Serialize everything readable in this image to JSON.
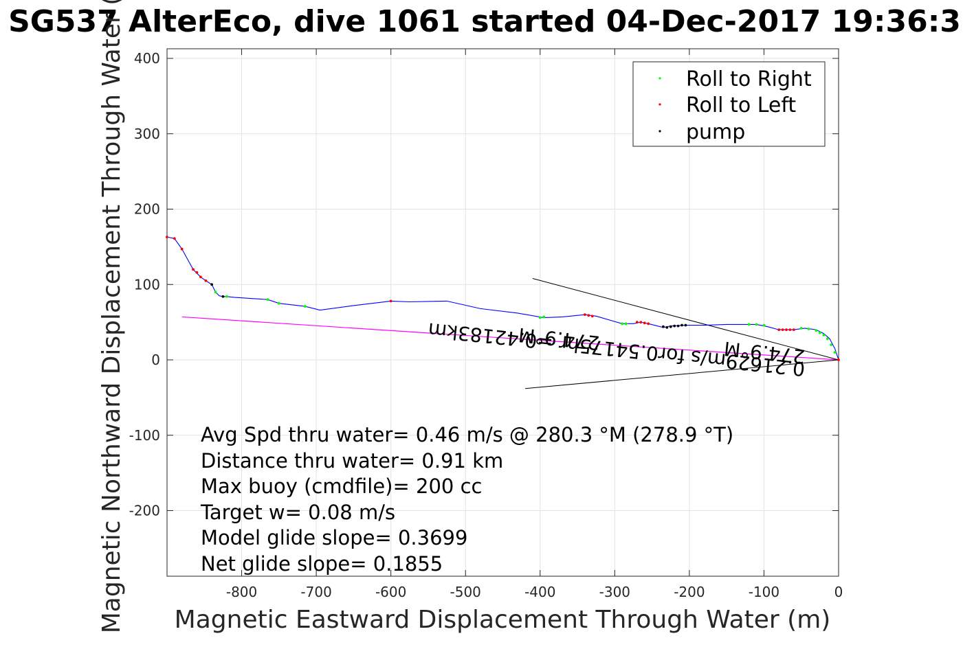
{
  "chart_data": {
    "type": "line",
    "title": "SG537 AlterEco, dive 1061 started 04-Dec-2017 19:36:3",
    "xlabel": "Magnetic Eastward Displacement Through Water (m)",
    "ylabel": "Magnetic Northward Displacement Through Water (",
    "xlim": [
      -900,
      0
    ],
    "ylim": [
      -290,
      415
    ],
    "xticks": [
      -800,
      -700,
      -600,
      -500,
      -400,
      -300,
      -200,
      -100,
      0
    ],
    "yticks": [
      -200,
      -100,
      0,
      100,
      200,
      300,
      400
    ],
    "grid": true,
    "legend_position": "top-right",
    "legend": [
      {
        "label": "Roll to Right",
        "color": "#00ff00"
      },
      {
        "label": "Roll to Left",
        "color": "#ff0000"
      },
      {
        "label": "pump",
        "color": "#000000"
      }
    ],
    "track": {
      "color": "#0000ff",
      "x": [
        -900,
        -890,
        -880,
        -865,
        -855,
        -848,
        -840,
        -835,
        -830,
        -825,
        -820,
        -810,
        -765,
        -750,
        -715,
        -695,
        -650,
        -600,
        -575,
        -525,
        -480,
        -430,
        -395,
        -370,
        -340,
        -325,
        -290,
        -275,
        -265,
        -255,
        -235,
        -225,
        -205,
        -180,
        -150,
        -110,
        -95,
        -80,
        -60,
        -45,
        -30,
        -20,
        -12,
        -5,
        0
      ],
      "y": [
        163,
        161,
        147,
        120,
        110,
        105,
        100,
        90,
        85,
        84,
        84,
        83,
        80,
        75,
        71,
        66,
        72,
        78,
        77,
        78,
        68,
        62,
        56,
        57,
        60,
        58,
        48,
        48,
        50,
        48,
        43,
        45,
        46,
        46,
        47,
        47,
        44,
        40,
        40,
        42,
        40,
        35,
        28,
        15,
        0
      ]
    },
    "roll_right": {
      "x": [
        -835,
        -820,
        -765,
        -750,
        -715,
        -400,
        -395,
        -290,
        -285,
        -120,
        -110,
        -100,
        -50,
        -40,
        -30,
        -25,
        -20,
        -15,
        -10,
        -5
      ],
      "y": [
        90,
        84,
        80,
        75,
        71,
        56,
        57,
        48,
        48,
        47,
        47,
        46,
        42,
        41,
        39,
        36,
        33,
        28,
        20,
        10
      ]
    },
    "roll_left": {
      "x": [
        -900,
        -890,
        -880,
        -865,
        -860,
        -855,
        -848,
        -600,
        -340,
        -335,
        -330,
        -270,
        -265,
        -260,
        -255,
        -80,
        -75,
        -70,
        -65,
        -60,
        0
      ],
      "y": [
        163,
        161,
        147,
        120,
        116,
        110,
        105,
        78,
        60,
        59,
        58,
        50,
        50,
        49,
        48,
        40,
        40,
        40,
        40,
        40,
        0
      ]
    },
    "pump": {
      "x": [
        -840,
        -825,
        -235,
        -230,
        -225,
        -220,
        -215,
        -210,
        -205
      ],
      "y": [
        100,
        84,
        44,
        43,
        44,
        45,
        45,
        46,
        46
      ]
    },
    "current_line": {
      "color": "#ff00ff",
      "x": [
        -880,
        0
      ],
      "y": [
        57,
        0
      ]
    },
    "wedge_lines": [
      {
        "x": [
          -410,
          0
        ],
        "y": [
          108,
          0
        ]
      },
      {
        "x": [
          -420,
          0
        ],
        "y": [
          -38,
          0
        ]
      }
    ],
    "rotated_labels": [
      "0.21629m/s for0.54175hr =0.42183km",
      "274.9°M",
      "274.9°M"
    ],
    "annotations": [
      "Avg Spd thru water=  0.46 m/s @ 280.3 °M (278.9 °T)",
      "Distance thru water=  0.91 km",
      "Max buoy (cmdfile)= 200 cc",
      "Target w= 0.08 m/s",
      "Model glide slope= 0.3699",
      "Net glide slope= 0.1855"
    ]
  }
}
